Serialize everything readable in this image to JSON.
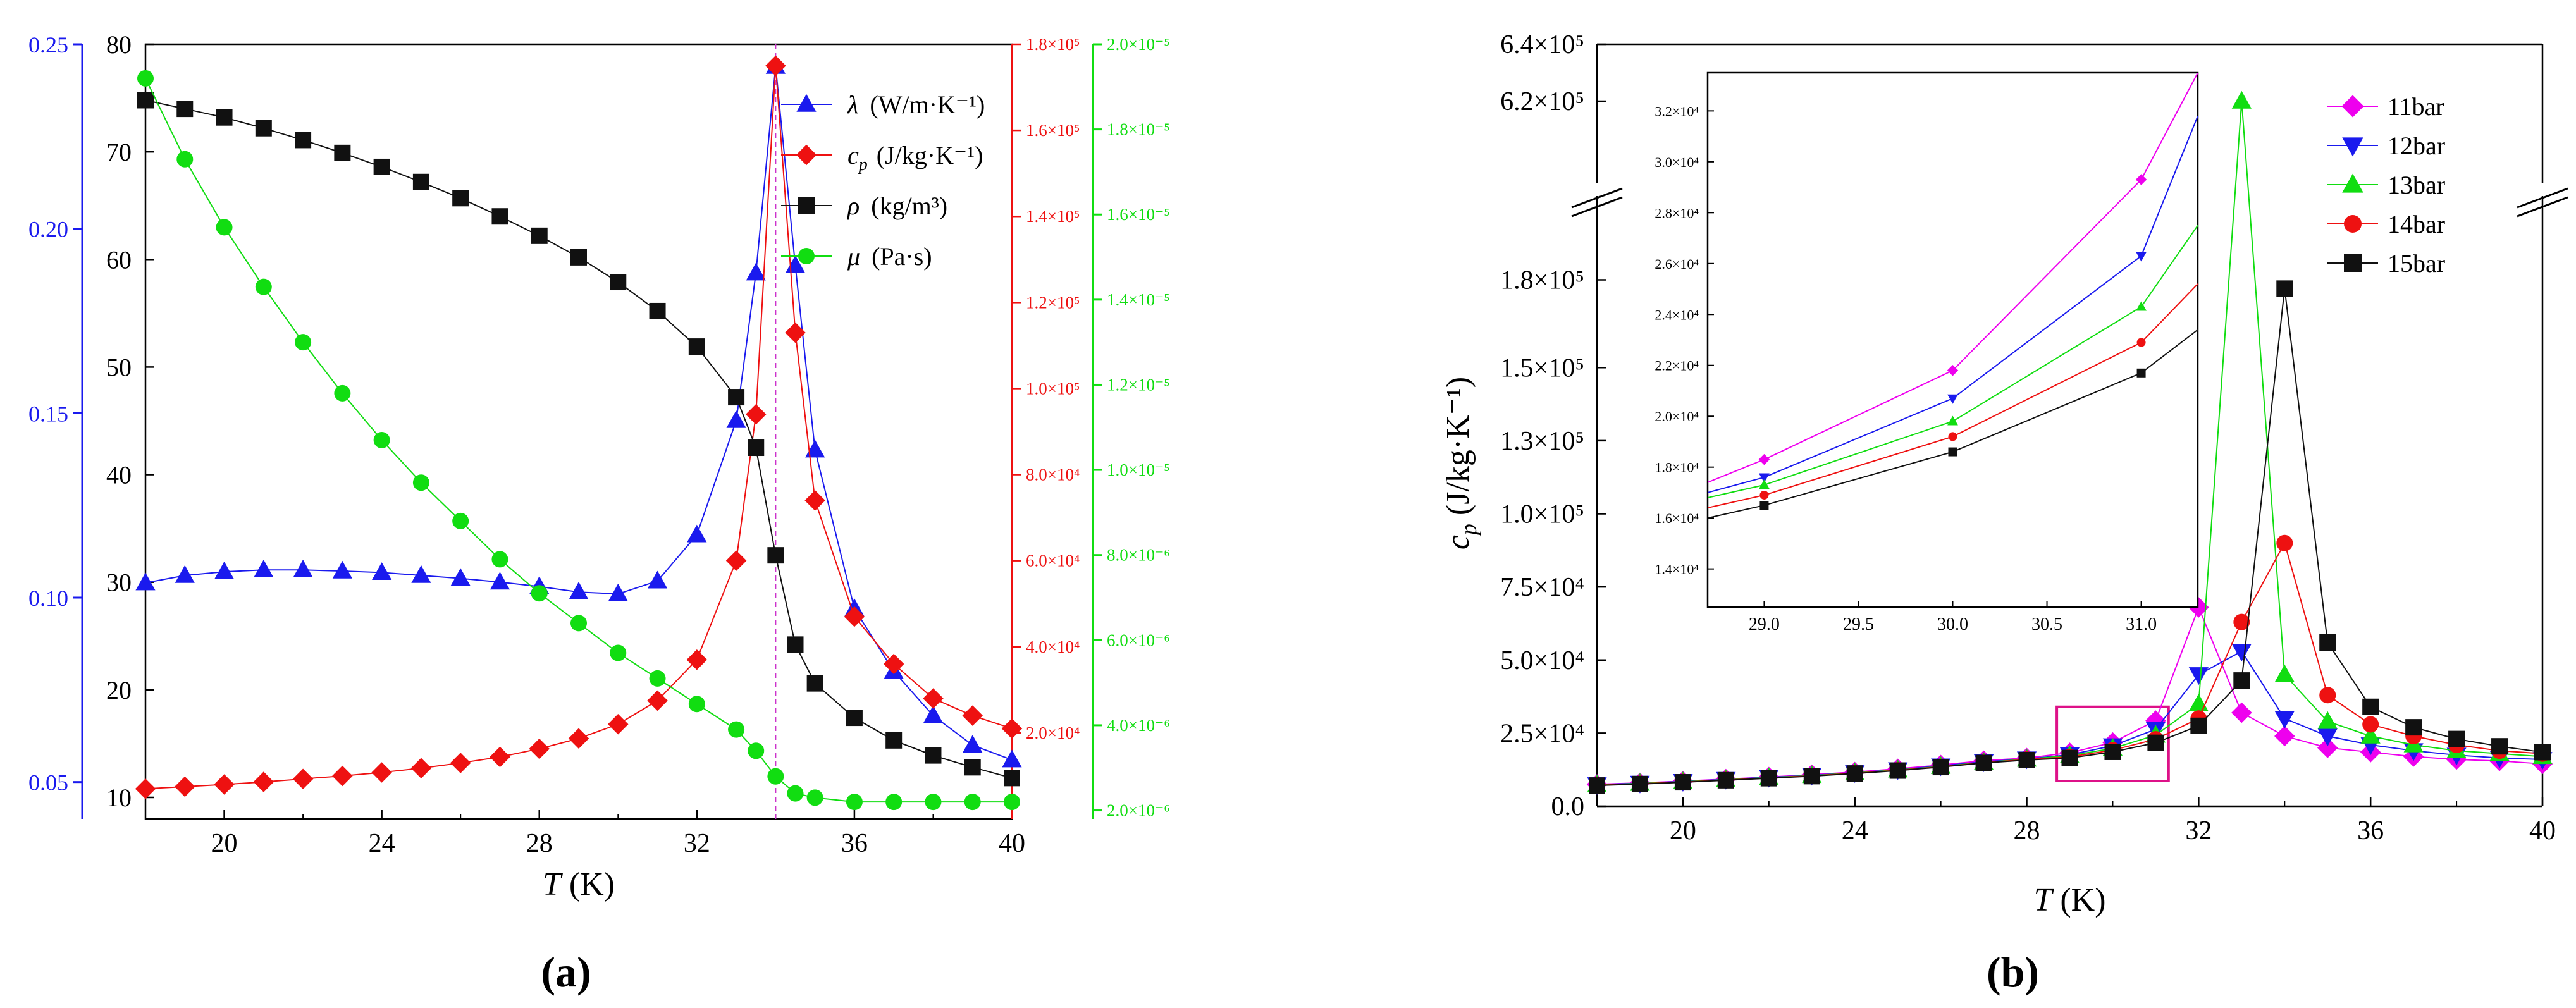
{
  "panels": {
    "a": {
      "label": "(a)"
    },
    "b": {
      "label": "(b)"
    }
  },
  "colors": {
    "blue": "#1a1aee",
    "red": "#ee1111",
    "black": "#111111",
    "green": "#11dd11",
    "magenta": "#ee00ee",
    "pink": "#dd1188",
    "violet": "#cc33cc"
  },
  "chart_data": [
    {
      "id": "panel-a",
      "type": "line",
      "title": "",
      "xlabel_italic": "T",
      "xlabel_unit": " (K)",
      "xlim": [
        18,
        40
      ],
      "xticks": [
        20,
        24,
        28,
        32,
        36,
        40
      ],
      "xtick_labels": [
        "20",
        "24",
        "28",
        "32",
        "36",
        "40"
      ],
      "critical_temperature": 34,
      "axes": {
        "blue_axis": {
          "range": [
            0.04,
            0.25
          ],
          "ticks": [
            0.05,
            0.1,
            0.15,
            0.2,
            0.25
          ],
          "tick_labels": [
            "0.05",
            "0.10",
            "0.15",
            "0.20",
            "0.25"
          ]
        },
        "black_axis": {
          "range": [
            8,
            80
          ],
          "ticks": [
            10,
            20,
            30,
            40,
            50,
            60,
            70,
            80
          ],
          "tick_labels": [
            "10",
            "20",
            "30",
            "40",
            "50",
            "60",
            "70",
            "80"
          ]
        },
        "red_axis": {
          "range": [
            0,
            180000
          ],
          "ticks": [
            20000,
            40000,
            60000,
            80000,
            100000,
            120000,
            140000,
            160000,
            180000
          ],
          "tick_labels": [
            "2.0×10⁴",
            "4.0×10⁴",
            "6.0×10⁴",
            "8.0×10⁴",
            "1.0×10⁵",
            "1.2×10⁵",
            "1.4×10⁵",
            "1.6×10⁵",
            "1.8×10⁵"
          ]
        },
        "green_axis": {
          "range": [
            1.8e-06,
            2e-05
          ],
          "ticks": [
            2e-06,
            4e-06,
            6e-06,
            8e-06,
            1e-05,
            1.2e-05,
            1.4e-05,
            1.6e-05,
            1.8e-05,
            2e-05
          ],
          "tick_labels": [
            "2.0×10⁻⁶",
            "4.0×10⁻⁶",
            "6.0×10⁻⁶",
            "8.0×10⁻⁶",
            "1.0×10⁻⁵",
            "1.2×10⁻⁵",
            "1.4×10⁻⁵",
            "1.6×10⁻⁵",
            "1.8×10⁻⁵",
            "2.0×10⁻⁵"
          ]
        }
      },
      "series": [
        {
          "name": "λ",
          "legend_sym": "λ",
          "legend_unit": "(W/m·K⁻¹)",
          "color_key": "blue",
          "marker": "triangle-up",
          "axis": "blue_axis",
          "x": [
            18,
            19,
            20,
            21,
            22,
            23,
            24,
            25,
            26,
            27,
            28,
            29,
            30,
            31,
            32,
            33,
            33.5,
            34,
            34.5,
            35,
            36,
            37,
            38,
            39,
            40
          ],
          "y": [
            0.104,
            0.106,
            0.107,
            0.1075,
            0.1075,
            0.1072,
            0.1068,
            0.106,
            0.1052,
            0.1042,
            0.103,
            0.1015,
            0.101,
            0.1045,
            0.117,
            0.148,
            0.188,
            0.244,
            0.19,
            0.14,
            0.097,
            0.08,
            0.068,
            0.06,
            0.056
          ]
        },
        {
          "name": "cp",
          "legend_sym": "c",
          "legend_sub": "p",
          "legend_unit": "(J/kg·K⁻¹)",
          "color_key": "red",
          "marker": "diamond",
          "axis": "red_axis",
          "x": [
            18,
            19,
            20,
            21,
            22,
            23,
            24,
            25,
            26,
            27,
            28,
            29,
            30,
            31,
            32,
            33,
            33.5,
            34,
            34.5,
            35,
            36,
            37,
            38,
            39,
            40
          ],
          "y": [
            7000,
            7500,
            8000,
            8600,
            9300,
            10000,
            10800,
            11800,
            13000,
            14400,
            16300,
            18700,
            22000,
            27500,
            37000,
            60000,
            94000,
            175000,
            113000,
            74000,
            47000,
            36000,
            28000,
            24000,
            21000
          ]
        },
        {
          "name": "ρ",
          "legend_sym": "ρ",
          "legend_unit": "(kg/m³)",
          "color_key": "black",
          "marker": "square",
          "axis": "black_axis",
          "x": [
            18,
            19,
            20,
            21,
            22,
            23,
            24,
            25,
            26,
            27,
            28,
            29,
            30,
            31,
            32,
            33,
            33.5,
            34,
            34.5,
            35,
            36,
            37,
            38,
            39,
            40
          ],
          "y": [
            74.8,
            74.0,
            73.2,
            72.2,
            71.1,
            69.9,
            68.6,
            67.2,
            65.7,
            64.0,
            62.2,
            60.2,
            57.9,
            55.2,
            51.9,
            47.2,
            42.5,
            32.5,
            24.2,
            20.6,
            17.4,
            15.3,
            13.9,
            12.8,
            11.8
          ]
        },
        {
          "name": "μ",
          "legend_sym": "μ",
          "legend_unit": "(Pa·s)",
          "color_key": "green",
          "marker": "circle",
          "axis": "green_axis",
          "x": [
            18,
            19,
            20,
            21,
            22,
            23,
            24,
            25,
            26,
            27,
            28,
            29,
            30,
            31,
            32,
            33,
            33.5,
            34,
            34.5,
            35,
            36,
            37,
            38,
            39,
            40
          ],
          "y": [
            1.92e-05,
            1.73e-05,
            1.57e-05,
            1.43e-05,
            1.3e-05,
            1.18e-05,
            1.07e-05,
            9.7e-06,
            8.8e-06,
            7.9e-06,
            7.1e-06,
            6.4e-06,
            5.7e-06,
            5.1e-06,
            4.5e-06,
            3.9e-06,
            3.4e-06,
            2.8e-06,
            2.4e-06,
            2.3e-06,
            2.2e-06,
            2.2e-06,
            2.2e-06,
            2.2e-06,
            2.2e-06
          ]
        }
      ]
    },
    {
      "id": "panel-b",
      "type": "line",
      "title": "",
      "xlabel_italic": "T",
      "xlabel_unit": " (K)",
      "ylabel_sym": "c",
      "ylabel_sub": "p",
      "ylabel_unit": " (J/kg·K⁻¹)",
      "xlim": [
        18,
        40
      ],
      "xticks": [
        20,
        24,
        28,
        32,
        36,
        40
      ],
      "xtick_labels": [
        "20",
        "24",
        "28",
        "32",
        "36",
        "40"
      ],
      "y_lower_range": [
        0,
        200000
      ],
      "y_upper_range": [
        600000,
        640000
      ],
      "yticks_lower": [
        0,
        25000,
        50000,
        75000,
        100000,
        125000,
        150000,
        180000
      ],
      "ytick_labels_lower": [
        "0.0",
        "2.5×10⁴",
        "5.0×10⁴",
        "7.5×10⁴",
        "1.0×10⁵",
        "1.3×10⁵",
        "1.5×10⁵",
        "1.8×10⁵"
      ],
      "yticks_upper": [
        620000,
        640000
      ],
      "ytick_labels_upper": [
        "6.2×10⁵",
        "6.4×10⁵"
      ],
      "highlight_box": {
        "x": [
          28.7,
          31.3
        ],
        "y": [
          0,
          34000
        ]
      },
      "series": [
        {
          "name": "11bar",
          "color_key": "magenta",
          "marker": "diamond",
          "x": [
            18,
            19,
            20,
            21,
            22,
            23,
            24,
            25,
            26,
            27,
            28,
            29,
            30,
            31,
            32,
            33,
            34,
            35,
            36,
            37,
            38,
            39,
            40
          ],
          "y": [
            7500,
            8000,
            8600,
            9300,
            10000,
            10800,
            11700,
            12800,
            14100,
            15600,
            16500,
            18300,
            21800,
            29300,
            68000,
            32000,
            24000,
            20000,
            18500,
            17000,
            16000,
            15500,
            14500
          ]
        },
        {
          "name": "12bar",
          "color_key": "blue",
          "marker": "triangle-down",
          "x": [
            18,
            19,
            20,
            21,
            22,
            23,
            24,
            25,
            26,
            27,
            28,
            29,
            30,
            31,
            32,
            33,
            34,
            35,
            36,
            37,
            38,
            39,
            40
          ],
          "y": [
            7400,
            7900,
            8500,
            9200,
            9900,
            10600,
            11500,
            12500,
            13800,
            15200,
            16200,
            17600,
            20700,
            26300,
            45000,
            53000,
            30000,
            24000,
            21000,
            19000,
            17500,
            16500,
            16000
          ]
        },
        {
          "name": "13bar",
          "color_key": "green",
          "marker": "triangle-up",
          "x": [
            18,
            19,
            20,
            21,
            22,
            23,
            24,
            25,
            26,
            27,
            28,
            29,
            30,
            31,
            32,
            33,
            34,
            35,
            36,
            37,
            38,
            39,
            40
          ],
          "y": [
            7300,
            7800,
            8400,
            9100,
            9800,
            10500,
            11400,
            12400,
            13600,
            15000,
            16100,
            17300,
            19800,
            24300,
            35000,
            620000,
            45000,
            29000,
            24000,
            21000,
            19000,
            18000,
            17000
          ]
        },
        {
          "name": "14bar",
          "color_key": "red",
          "marker": "circle",
          "x": [
            18,
            19,
            20,
            21,
            22,
            23,
            24,
            25,
            26,
            27,
            28,
            29,
            30,
            31,
            32,
            33,
            34,
            35,
            36,
            37,
            38,
            39,
            40
          ],
          "y": [
            7200,
            7700,
            8300,
            9000,
            9700,
            10400,
            11300,
            12300,
            13500,
            14900,
            16000,
            16900,
            19200,
            22900,
            30000,
            63000,
            90000,
            38000,
            28000,
            24000,
            21000,
            19000,
            18000
          ]
        },
        {
          "name": "15bar",
          "color_key": "black",
          "marker": "square",
          "x": [
            18,
            19,
            20,
            21,
            22,
            23,
            24,
            25,
            26,
            27,
            28,
            29,
            30,
            31,
            32,
            33,
            34,
            35,
            36,
            37,
            38,
            39,
            40
          ],
          "y": [
            7100,
            7600,
            8200,
            8900,
            9600,
            10300,
            11200,
            12200,
            13400,
            14800,
            15800,
            16500,
            18600,
            21700,
            27500,
            43000,
            177000,
            56000,
            34000,
            27000,
            23000,
            20500,
            18500
          ]
        }
      ],
      "inset": {
        "xlim": [
          28.7,
          31.3
        ],
        "ylim": [
          12500,
          33500
        ],
        "xticks": [
          29.0,
          29.5,
          30.0,
          30.5,
          31.0
        ],
        "xtick_labels": [
          "29.0",
          "29.5",
          "30.0",
          "30.5",
          "31.0"
        ],
        "yticks": [
          14000,
          16000,
          18000,
          20000,
          22000,
          24000,
          26000,
          28000,
          30000,
          32000
        ],
        "ytick_labels": [
          "1.4×10⁴",
          "1.6×10⁴",
          "1.8×10⁴",
          "2.0×10⁴",
          "2.2×10⁴",
          "2.4×10⁴",
          "2.6×10⁴",
          "2.8×10⁴",
          "3.0×10⁴",
          "3.2×10⁴"
        ],
        "series": [
          {
            "name": "11bar",
            "color_key": "magenta",
            "marker": "diamond",
            "x": [
              28.7,
              29,
              30,
              31,
              31.3
            ],
            "y": [
              17400,
              18300,
              21800,
              29300,
              33500
            ]
          },
          {
            "name": "12bar",
            "color_key": "blue",
            "marker": "triangle-down",
            "x": [
              28.7,
              29,
              30,
              31,
              31.3
            ],
            "y": [
              17000,
              17600,
              20700,
              26300,
              31800
            ]
          },
          {
            "name": "13bar",
            "color_key": "green",
            "marker": "triangle-up",
            "x": [
              28.7,
              29,
              30,
              31,
              31.3
            ],
            "y": [
              16800,
              17300,
              19800,
              24300,
              27500
            ]
          },
          {
            "name": "14bar",
            "color_key": "red",
            "marker": "circle",
            "x": [
              28.7,
              29,
              30,
              31,
              31.3
            ],
            "y": [
              16400,
              16900,
              19200,
              22900,
              25200
            ]
          },
          {
            "name": "15bar",
            "color_key": "black",
            "marker": "square",
            "x": [
              28.7,
              29,
              30,
              31,
              31.3
            ],
            "y": [
              16000,
              16500,
              18600,
              21700,
              23400
            ]
          }
        ]
      }
    }
  ]
}
